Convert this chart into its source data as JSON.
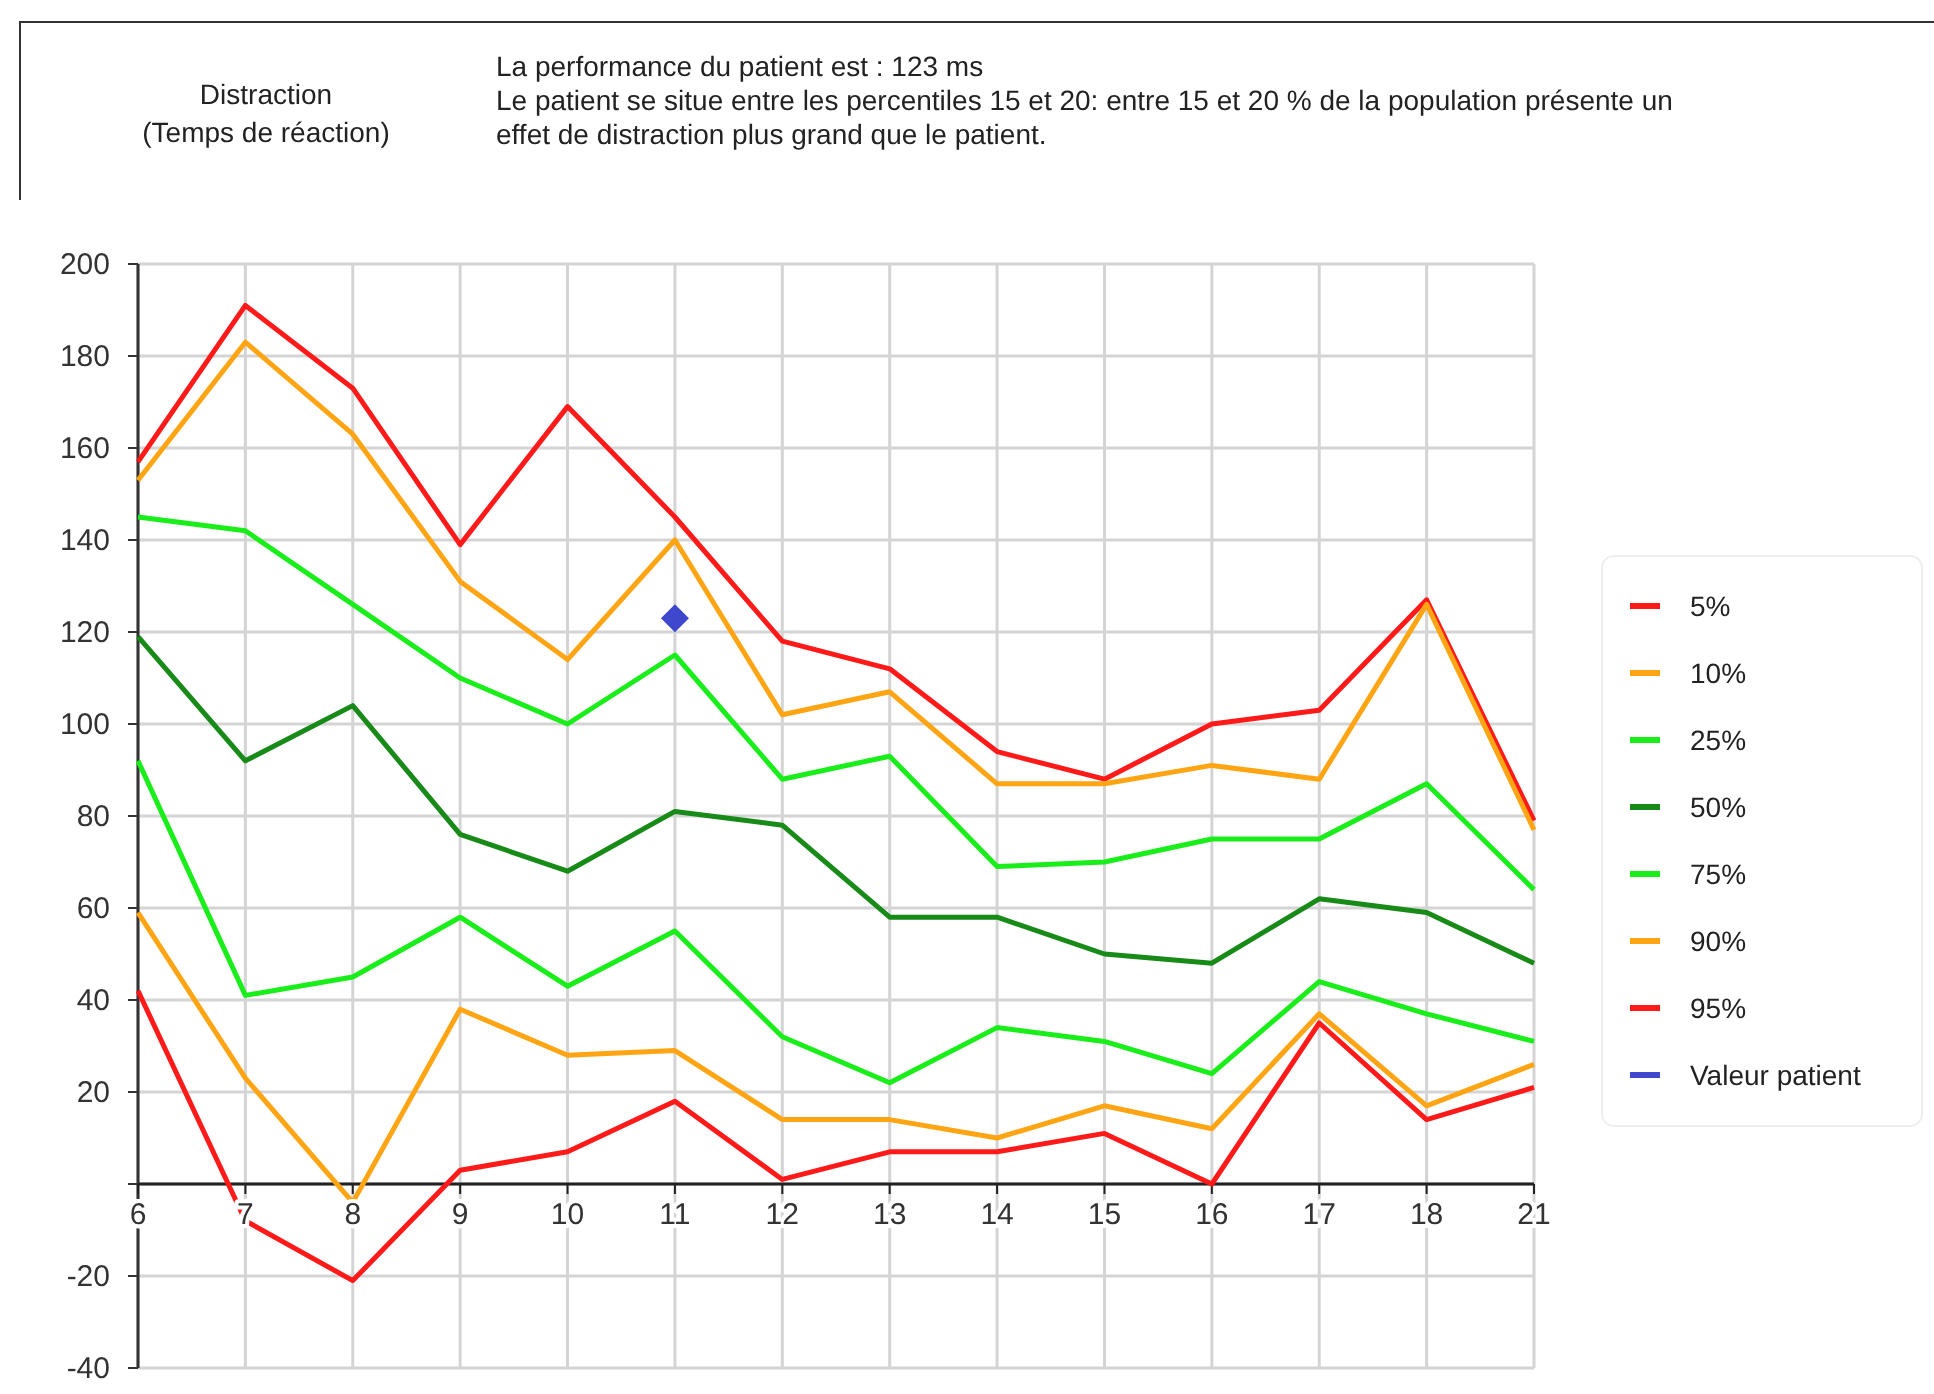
{
  "chart_data": {
    "type": "line",
    "title": "Distraction\n(Temps de réaction)",
    "subtitle": "La performance du patient est : 123 ms\nLe patient se situe entre les percentiles 15 et 20: entre 15 et 20 % de la population présente un\neffet de distraction plus grand que le patient.",
    "categories": [
      "6",
      "7",
      "8",
      "9",
      "10",
      "11",
      "12",
      "13",
      "14",
      "15",
      "16",
      "17",
      "18",
      "21"
    ],
    "series": [
      {
        "name": "5%",
        "color": "#ff1a1a",
        "values": [
          157,
          191,
          173,
          139,
          169,
          145,
          118,
          112,
          94,
          88,
          100,
          103,
          127,
          79
        ]
      },
      {
        "name": "10%",
        "color": "#ffa514",
        "values": [
          153,
          183,
          163,
          131,
          114,
          140,
          102,
          107,
          87,
          87,
          91,
          88,
          126,
          77
        ]
      },
      {
        "name": "25%",
        "color": "#1aee1a",
        "values": [
          145,
          142,
          126,
          110,
          100,
          115,
          88,
          93,
          69,
          70,
          75,
          75,
          87,
          64
        ]
      },
      {
        "name": "50%",
        "color": "#178a17",
        "values": [
          119,
          92,
          104,
          76,
          68,
          81,
          78,
          58,
          58,
          50,
          48,
          62,
          59,
          48
        ]
      },
      {
        "name": "75%",
        "color": "#1aee1a",
        "values": [
          92,
          41,
          45,
          58,
          43,
          55,
          32,
          22,
          34,
          31,
          24,
          44,
          37,
          31
        ]
      },
      {
        "name": "90%",
        "color": "#ffa514",
        "values": [
          59,
          23,
          -4,
          38,
          28,
          29,
          14,
          14,
          10,
          17,
          12,
          37,
          17,
          26
        ]
      },
      {
        "name": "95%",
        "color": "#ff1a1a",
        "values": [
          42,
          -8,
          -21,
          3,
          7,
          18,
          1,
          7,
          7,
          11,
          0,
          35,
          14,
          21
        ]
      },
      {
        "name": "Valeur patient",
        "type": "scatter",
        "marker": "diamond",
        "color": "#3f48cc",
        "x": [
          "11"
        ],
        "values": [
          123
        ]
      }
    ],
    "ylim": [
      -40,
      200
    ],
    "yticks": [
      {
        "value": -40,
        "label": "-40"
      },
      {
        "value": -20,
        "label": "-20"
      },
      {
        "value": 0,
        "label": null
      },
      20,
      40,
      60,
      80,
      100,
      120,
      140,
      160,
      180,
      200
    ],
    "grid": true,
    "legend": "right",
    "line_style": "solid"
  }
}
